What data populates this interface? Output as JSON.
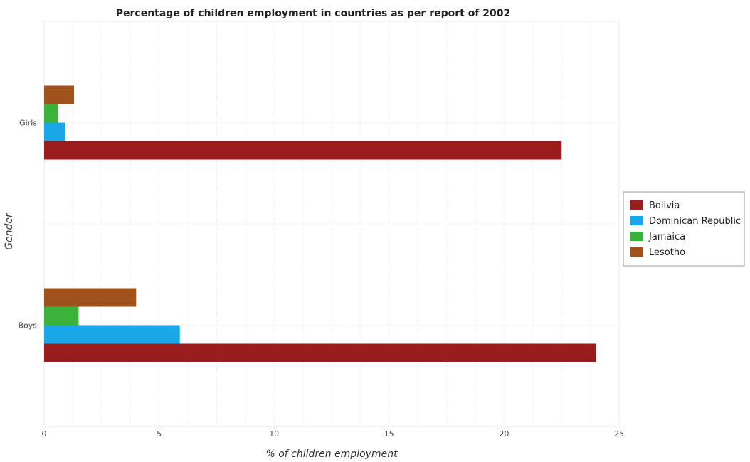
{
  "chart_data": {
    "type": "bar",
    "orientation": "horizontal",
    "title": "Percentage of children employment in countries as per report of 2002",
    "xlabel": "% of children employment",
    "ylabel": "Gender",
    "categories": [
      "Girls",
      "Boys"
    ],
    "xlim": [
      0,
      25
    ],
    "xticks": [
      0,
      5,
      10,
      15,
      20,
      25
    ],
    "grid": true,
    "legend_position": "right",
    "series": [
      {
        "name": "Bolivia",
        "color": "#9b1c1c",
        "values": [
          22.5,
          24.0
        ]
      },
      {
        "name": "Dominican Republic",
        "color": "#1aa7e8",
        "values": [
          0.9,
          5.9
        ]
      },
      {
        "name": "Jamaica",
        "color": "#3bb33b",
        "values": [
          0.6,
          1.5
        ]
      },
      {
        "name": "Lesotho",
        "color": "#a0521d",
        "values": [
          1.3,
          4.0
        ]
      }
    ]
  }
}
